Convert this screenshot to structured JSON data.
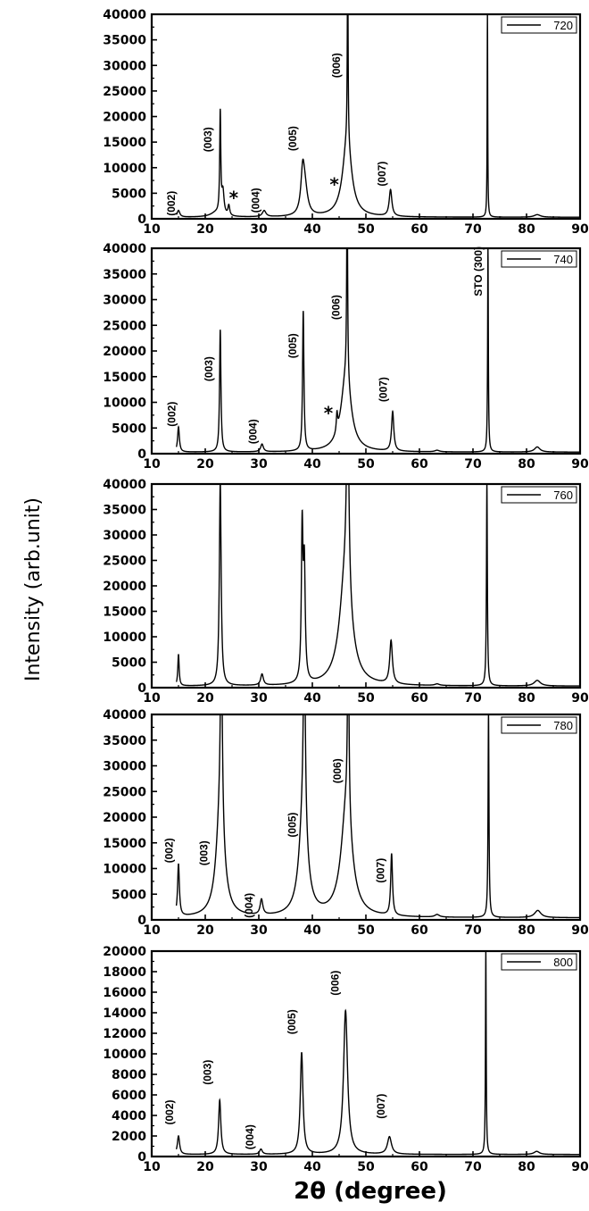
{
  "figure": {
    "ylabel": "Intensity (arb.unit)",
    "xlabel": "2θ (degree)"
  },
  "chart_data": [
    {
      "type": "line",
      "legend": "720",
      "legend_position": "top-right",
      "xlim": [
        10,
        90
      ],
      "ylim": [
        0,
        40000
      ],
      "xticks": [
        10,
        20,
        30,
        40,
        50,
        60,
        70,
        80,
        90
      ],
      "yticks": [
        0,
        5000,
        10000,
        15000,
        20000,
        25000,
        30000,
        35000,
        40000
      ],
      "baseline": 300,
      "peaks": [
        {
          "x": 15.0,
          "h": 1300,
          "w": 0.3
        },
        {
          "x": 22.0,
          "h": 800,
          "w": 1.2
        },
        {
          "x": 22.8,
          "h": 19700,
          "w": 0.12
        },
        {
          "x": 23.3,
          "h": 4500,
          "w": 0.25
        },
        {
          "x": 24.4,
          "h": 2000,
          "w": 0.2
        },
        {
          "x": 31.0,
          "h": 1200,
          "w": 0.4
        },
        {
          "x": 38.2,
          "h": 7500,
          "w": 0.4
        },
        {
          "x": 38.6,
          "h": 5000,
          "w": 0.6
        },
        {
          "x": 46.5,
          "h": 15000,
          "w": 1.0
        },
        {
          "x": 46.6,
          "h": 39800,
          "w": 0.08
        },
        {
          "x": 54.6,
          "h": 5200,
          "w": 0.3
        },
        {
          "x": 72.7,
          "h": 39800,
          "w": 0.06
        },
        {
          "x": 82.0,
          "h": 500,
          "w": 0.7
        }
      ],
      "annotations": [
        {
          "text": "(002)",
          "x": 14.3,
          "y": 3000,
          "rotate": true
        },
        {
          "text": "(003)",
          "x": 21.2,
          "y": 15500,
          "rotate": true
        },
        {
          "text": "*",
          "x": 25.3,
          "y": 2900,
          "rotate": false
        },
        {
          "text": "(004)",
          "x": 30.1,
          "y": 3600,
          "rotate": true
        },
        {
          "text": "(005)",
          "x": 37.0,
          "y": 15700,
          "rotate": true
        },
        {
          "text": "*",
          "x": 44.1,
          "y": 5500,
          "rotate": false
        },
        {
          "text": "(006)",
          "x": 45.2,
          "y": 30000,
          "rotate": true
        },
        {
          "text": "(007)",
          "x": 53.7,
          "y": 8800,
          "rotate": true
        }
      ]
    },
    {
      "type": "line",
      "legend": "740",
      "legend_position": "top-right",
      "xlim": [
        10,
        90
      ],
      "ylim": [
        0,
        40000
      ],
      "xticks": [
        10,
        20,
        30,
        40,
        50,
        60,
        70,
        80,
        90
      ],
      "yticks": [
        0,
        5000,
        10000,
        15000,
        20000,
        25000,
        30000,
        35000,
        40000
      ],
      "baseline": 300,
      "peaks": [
        {
          "x": 15.0,
          "h": 4900,
          "w": 0.2
        },
        {
          "x": 22.8,
          "h": 23800,
          "w": 0.15
        },
        {
          "x": 30.6,
          "h": 1500,
          "w": 0.3
        },
        {
          "x": 38.3,
          "h": 27200,
          "w": 0.15
        },
        {
          "x": 44.6,
          "h": 3500,
          "w": 0.15
        },
        {
          "x": 46.3,
          "h": 15000,
          "w": 1.1
        },
        {
          "x": 46.5,
          "h": 39800,
          "w": 0.1
        },
        {
          "x": 55.0,
          "h": 7700,
          "w": 0.25
        },
        {
          "x": 63.3,
          "h": 300,
          "w": 0.5
        },
        {
          "x": 72.8,
          "h": 39800,
          "w": 0.08
        },
        {
          "x": 82.0,
          "h": 1000,
          "w": 0.6
        }
      ],
      "annotations": [
        {
          "text": "(002)",
          "x": 14.4,
          "y": 7700,
          "rotate": true
        },
        {
          "text": "(003)",
          "x": 21.3,
          "y": 16500,
          "rotate": true
        },
        {
          "text": "(004)",
          "x": 29.6,
          "y": 4300,
          "rotate": true
        },
        {
          "text": "(005)",
          "x": 37.0,
          "y": 21000,
          "rotate": true
        },
        {
          "text": "*",
          "x": 43.0,
          "y": 6700,
          "rotate": false
        },
        {
          "text": "(006)",
          "x": 45.1,
          "y": 28500,
          "rotate": true
        },
        {
          "text": "(007)",
          "x": 53.9,
          "y": 12500,
          "rotate": true
        },
        {
          "text": "STO (300)",
          "x": 71.7,
          "y": 35500,
          "rotate": true
        }
      ]
    },
    {
      "type": "line",
      "legend": "760",
      "legend_position": "top-right",
      "xlim": [
        10,
        90
      ],
      "ylim": [
        0,
        40000
      ],
      "xticks": [
        10,
        20,
        30,
        40,
        50,
        60,
        70,
        80,
        90
      ],
      "yticks": [
        0,
        5000,
        10000,
        15000,
        20000,
        25000,
        30000,
        35000,
        40000
      ],
      "baseline": 300,
      "peaks": [
        {
          "x": 15.0,
          "h": 6200,
          "w": 0.15
        },
        {
          "x": 22.8,
          "h": 39800,
          "w": 0.2
        },
        {
          "x": 30.6,
          "h": 2200,
          "w": 0.3
        },
        {
          "x": 38.1,
          "h": 29500,
          "w": 0.18
        },
        {
          "x": 38.5,
          "h": 22000,
          "w": 0.2
        },
        {
          "x": 46.2,
          "h": 22000,
          "w": 1.3
        },
        {
          "x": 46.6,
          "h": 39800,
          "w": 0.25
        },
        {
          "x": 54.7,
          "h": 8500,
          "w": 0.3
        },
        {
          "x": 63.3,
          "h": 300,
          "w": 0.5
        },
        {
          "x": 72.6,
          "h": 39800,
          "w": 0.1
        },
        {
          "x": 82.0,
          "h": 1100,
          "w": 0.7
        }
      ],
      "annotations": []
    },
    {
      "type": "line",
      "legend": "780",
      "legend_position": "top-right",
      "xlim": [
        10,
        90
      ],
      "ylim": [
        0,
        40000
      ],
      "xticks": [
        10,
        20,
        30,
        40,
        50,
        60,
        70,
        80,
        90
      ],
      "yticks": [
        0,
        5000,
        10000,
        15000,
        20000,
        25000,
        30000,
        35000,
        40000
      ],
      "baseline": 400,
      "peaks": [
        {
          "x": 15.0,
          "h": 10200,
          "w": 0.2
        },
        {
          "x": 22.8,
          "h": 20000,
          "w": 0.9
        },
        {
          "x": 23.0,
          "h": 39800,
          "w": 0.2
        },
        {
          "x": 30.5,
          "h": 3000,
          "w": 0.3
        },
        {
          "x": 38.3,
          "h": 20000,
          "w": 0.9
        },
        {
          "x": 38.5,
          "h": 39800,
          "w": 0.2
        },
        {
          "x": 46.4,
          "h": 22000,
          "w": 1.2
        },
        {
          "x": 46.7,
          "h": 39800,
          "w": 0.15
        },
        {
          "x": 54.8,
          "h": 12000,
          "w": 0.2
        },
        {
          "x": 63.3,
          "h": 500,
          "w": 0.5
        },
        {
          "x": 72.9,
          "h": 39800,
          "w": 0.1
        },
        {
          "x": 82.1,
          "h": 1400,
          "w": 0.7
        }
      ],
      "annotations": [
        {
          "text": "(002)",
          "x": 13.9,
          "y": 13500,
          "rotate": true
        },
        {
          "text": "(003)",
          "x": 20.4,
          "y": 13000,
          "rotate": true
        },
        {
          "text": "(004)",
          "x": 28.8,
          "y": 2800,
          "rotate": true
        },
        {
          "text": "(005)",
          "x": 36.9,
          "y": 18500,
          "rotate": true
        },
        {
          "text": "(006)",
          "x": 45.3,
          "y": 29000,
          "rotate": true
        },
        {
          "text": "(007)",
          "x": 53.4,
          "y": 9600,
          "rotate": true
        }
      ]
    },
    {
      "type": "line",
      "legend": "800",
      "legend_position": "top-right",
      "xlim": [
        10,
        90
      ],
      "ylim": [
        0,
        20000
      ],
      "xticks": [
        10,
        20,
        30,
        40,
        50,
        60,
        70,
        80,
        90
      ],
      "yticks": [
        0,
        2000,
        4000,
        6000,
        8000,
        10000,
        12000,
        14000,
        16000,
        18000,
        20000
      ],
      "baseline": 200,
      "peaks": [
        {
          "x": 15.0,
          "h": 1800,
          "w": 0.25
        },
        {
          "x": 22.7,
          "h": 5300,
          "w": 0.25
        },
        {
          "x": 30.4,
          "h": 500,
          "w": 0.3
        },
        {
          "x": 38.0,
          "h": 9900,
          "w": 0.3
        },
        {
          "x": 46.2,
          "h": 14000,
          "w": 0.45
        },
        {
          "x": 54.4,
          "h": 1700,
          "w": 0.45
        },
        {
          "x": 72.4,
          "h": 19900,
          "w": 0.08
        },
        {
          "x": 81.9,
          "h": 300,
          "w": 0.6
        }
      ],
      "annotations": [
        {
          "text": "(002)",
          "x": 14.0,
          "y": 4300,
          "rotate": true
        },
        {
          "text": "(003)",
          "x": 21.1,
          "y": 8200,
          "rotate": true
        },
        {
          "text": "(004)",
          "x": 29.0,
          "y": 1900,
          "rotate": true
        },
        {
          "text": "(005)",
          "x": 36.8,
          "y": 13100,
          "rotate": true
        },
        {
          "text": "(006)",
          "x": 44.9,
          "y": 16900,
          "rotate": true
        },
        {
          "text": "(007)",
          "x": 53.5,
          "y": 4900,
          "rotate": true
        }
      ]
    }
  ]
}
